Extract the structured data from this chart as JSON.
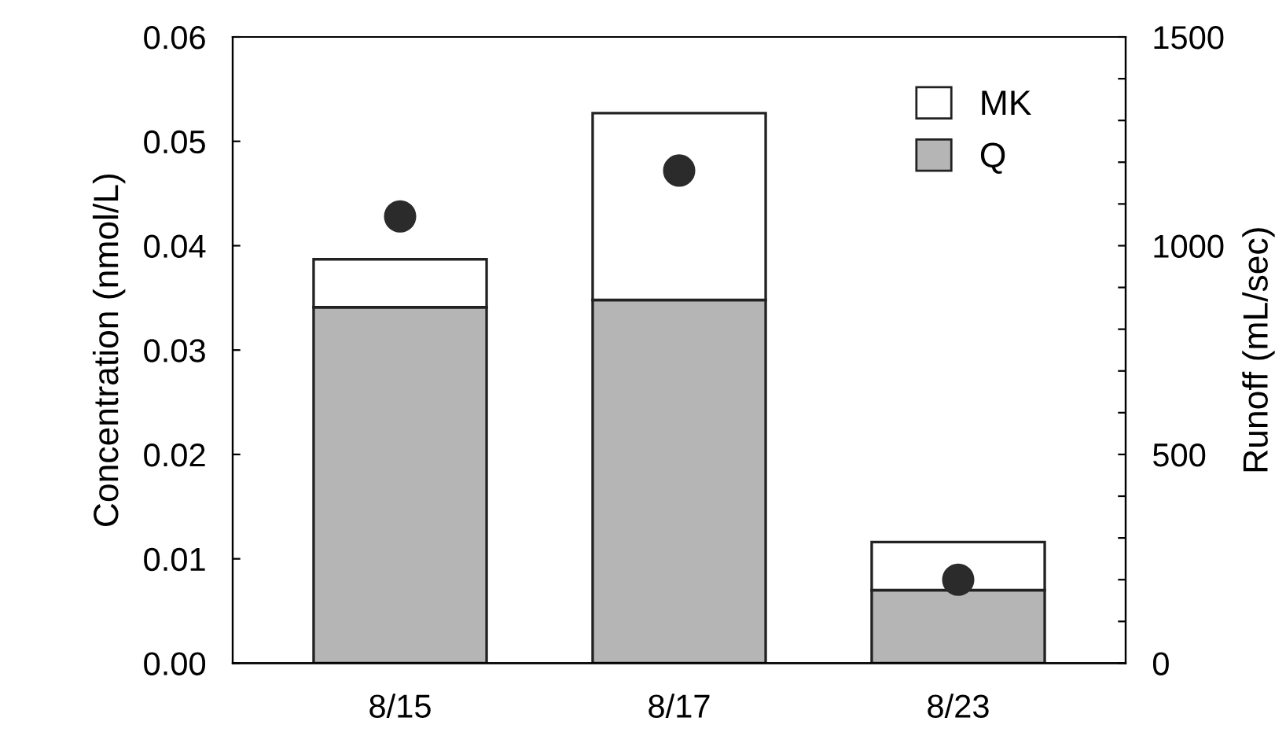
{
  "chart_data": {
    "type": "bar",
    "stacked": true,
    "categories": [
      "8/15",
      "8/17",
      "8/23"
    ],
    "ylabel": "Concentration (nmol/L)",
    "y2label": "Runoff (mL/sec)",
    "series": [
      {
        "name": "Q",
        "color": "#b5b5b5",
        "values": [
          0.0341,
          0.0348,
          0.007
        ]
      },
      {
        "name": "MK",
        "color": "#ffffff",
        "values": [
          0.0046,
          0.0179,
          0.0046
        ]
      },
      {
        "type": "scatter",
        "axis": "y2",
        "color": "#2b2b2b",
        "marker": "circle",
        "values": [
          1070,
          1180,
          200
        ]
      }
    ],
    "ylim": [
      0,
      0.06
    ],
    "yticks": [
      {
        "value": 0,
        "label": "0.00"
      },
      0.01,
      0.02,
      0.03,
      0.04,
      0.05,
      0.06
    ],
    "y2lim": [
      0,
      1500
    ],
    "y2ticks": [
      0,
      {
        "value": 100,
        "label": null
      },
      {
        "value": 200,
        "label": null
      },
      {
        "value": 300,
        "label": null
      },
      {
        "value": 400,
        "label": null
      },
      500,
      {
        "value": 600,
        "label": null
      },
      {
        "value": 700,
        "label": null
      },
      {
        "value": 800,
        "label": null
      },
      {
        "value": 900,
        "label": null
      },
      1000,
      {
        "value": 1100,
        "label": null
      },
      {
        "value": 1200,
        "label": null
      },
      {
        "value": 1300,
        "label": null
      },
      {
        "value": 1400,
        "label": null
      },
      1500
    ],
    "legend": "top right",
    "grid": false
  }
}
